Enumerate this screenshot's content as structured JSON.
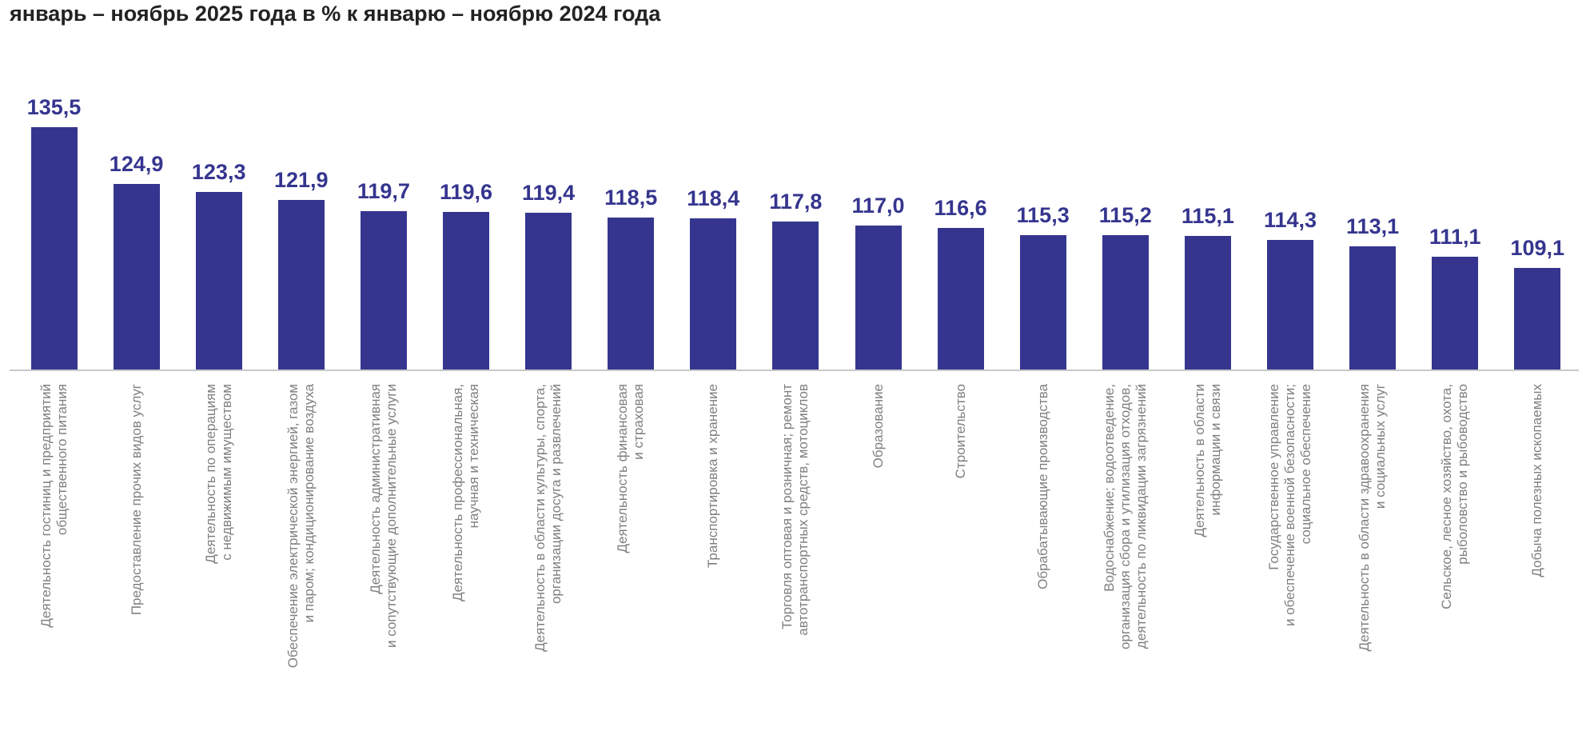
{
  "chart_data": {
    "type": "bar",
    "title": "январь – ноябрь 2025 года в % к январю – ноябрю 2024 года",
    "xlabel": "",
    "ylabel": "",
    "ylim": [
      90,
      140
    ],
    "grid": false,
    "bar_color": "#35358f",
    "categories": [
      "Деятельность гостиниц и предприятий\nобщественного питания",
      "Предоставление прочих видов услуг",
      "Деятельность по операциям\nс недвижимым имуществом",
      "Обеспечение электрической энергией, газом\nи паром; кондиционирование воздуха",
      "Деятельность административная\nи сопутствующие дополнительные услуги",
      "Деятельность профессиональная,\nнаучная и техническая",
      "Деятельность в области культуры, спорта,\nорганизации досуга и развлечений",
      "Деятельность финансовая\nи страховая",
      "Транспортировка и хранение",
      "Торговля оптовая и розничная; ремонт\nавтотранспортных средств, мотоциклов",
      "Образование",
      "Строительство",
      "Обрабатывающие производства",
      "Водоснабжение; водоотведение,\nорганизация сбора и утилизация отходов,\nдеятельность по ликвидации загрязнений",
      "Деятельность в области\nинформации и связи",
      "Государственное управление\nи обеспечение военной безопасности;\nсоциальное обеспечение",
      "Деятельность в области здравоохранения\nи социальных услуг",
      "Сельское, лесное хозяйство, охота,\nрыболовство и рыбоводство",
      "Добыча полезных ископаемых"
    ],
    "values": [
      135.5,
      124.9,
      123.3,
      121.9,
      119.7,
      119.6,
      119.4,
      118.5,
      118.4,
      117.8,
      117.0,
      116.6,
      115.3,
      115.2,
      115.1,
      114.3,
      113.1,
      111.1,
      109.1
    ],
    "value_labels": [
      "135,5",
      "124,9",
      "123,3",
      "121,9",
      "119,7",
      "119,6",
      "119,4",
      "118,5",
      "118,4",
      "117,8",
      "117,0",
      "116,6",
      "115,3",
      "115,2",
      "115,1",
      "114,3",
      "113,1",
      "111,1",
      "109,1"
    ]
  }
}
